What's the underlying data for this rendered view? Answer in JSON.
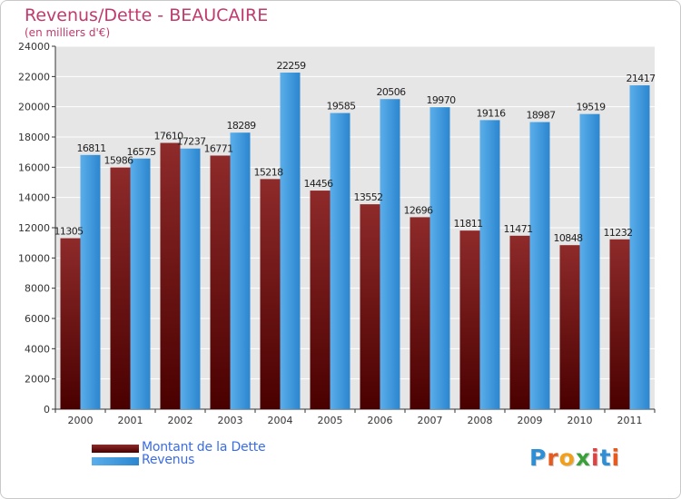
{
  "title": "Revenus/Dette - BEAUCAIRE",
  "subtitle": "(en milliers d'€)",
  "brand": {
    "text": "Proxiti",
    "letter_colors": [
      "#2f8fd6",
      "#e65a1e",
      "#f2a019",
      "#3aa13a",
      "#e04040",
      "#2f8fd6",
      "#e65a1e"
    ]
  },
  "colors": {
    "dette": "#7a1a1a",
    "revenus": "#3d9ae0",
    "axis_text": "#333333",
    "grid": "#ffffff",
    "plot_bg": "#e6e6e6",
    "title": "#c03a6e"
  },
  "chart_data": {
    "type": "bar",
    "categories": [
      "2000",
      "2001",
      "2002",
      "2003",
      "2004",
      "2005",
      "2006",
      "2007",
      "2008",
      "2009",
      "2010",
      "2011"
    ],
    "series": [
      {
        "name": "Montant de la Dette",
        "values": [
          11305,
          15986,
          17610,
          16771,
          15218,
          14456,
          13552,
          12696,
          11811,
          11471,
          10848,
          11232
        ],
        "labels": [
          "11305",
          "15986",
          "17610",
          "16771",
          "15218",
          "14456",
          "13552",
          "12696",
          "11811",
          "11471",
          "10848",
          "11232"
        ]
      },
      {
        "name": "Revenus",
        "values": [
          16811,
          16575,
          17237,
          18289,
          22259,
          19585,
          20506,
          19970,
          19116,
          18987,
          19519,
          21417
        ],
        "labels": [
          "16811",
          "16575",
          "17237",
          "18289",
          "22259",
          "19585",
          "20506",
          "19970",
          "19116",
          "18987",
          "19519",
          "21417"
        ]
      }
    ],
    "ylim": [
      0,
      24000
    ],
    "yticks": [
      0,
      2000,
      4000,
      6000,
      8000,
      10000,
      12000,
      14000,
      16000,
      18000,
      20000,
      22000,
      24000
    ],
    "ytick_labels": [
      "0",
      "2000",
      "4000",
      "6000",
      "8000",
      "10000",
      "12000",
      "14000",
      "16000",
      "18000",
      "20000",
      "22000",
      "24000"
    ],
    "grid": true,
    "legend": "bottom-left"
  }
}
